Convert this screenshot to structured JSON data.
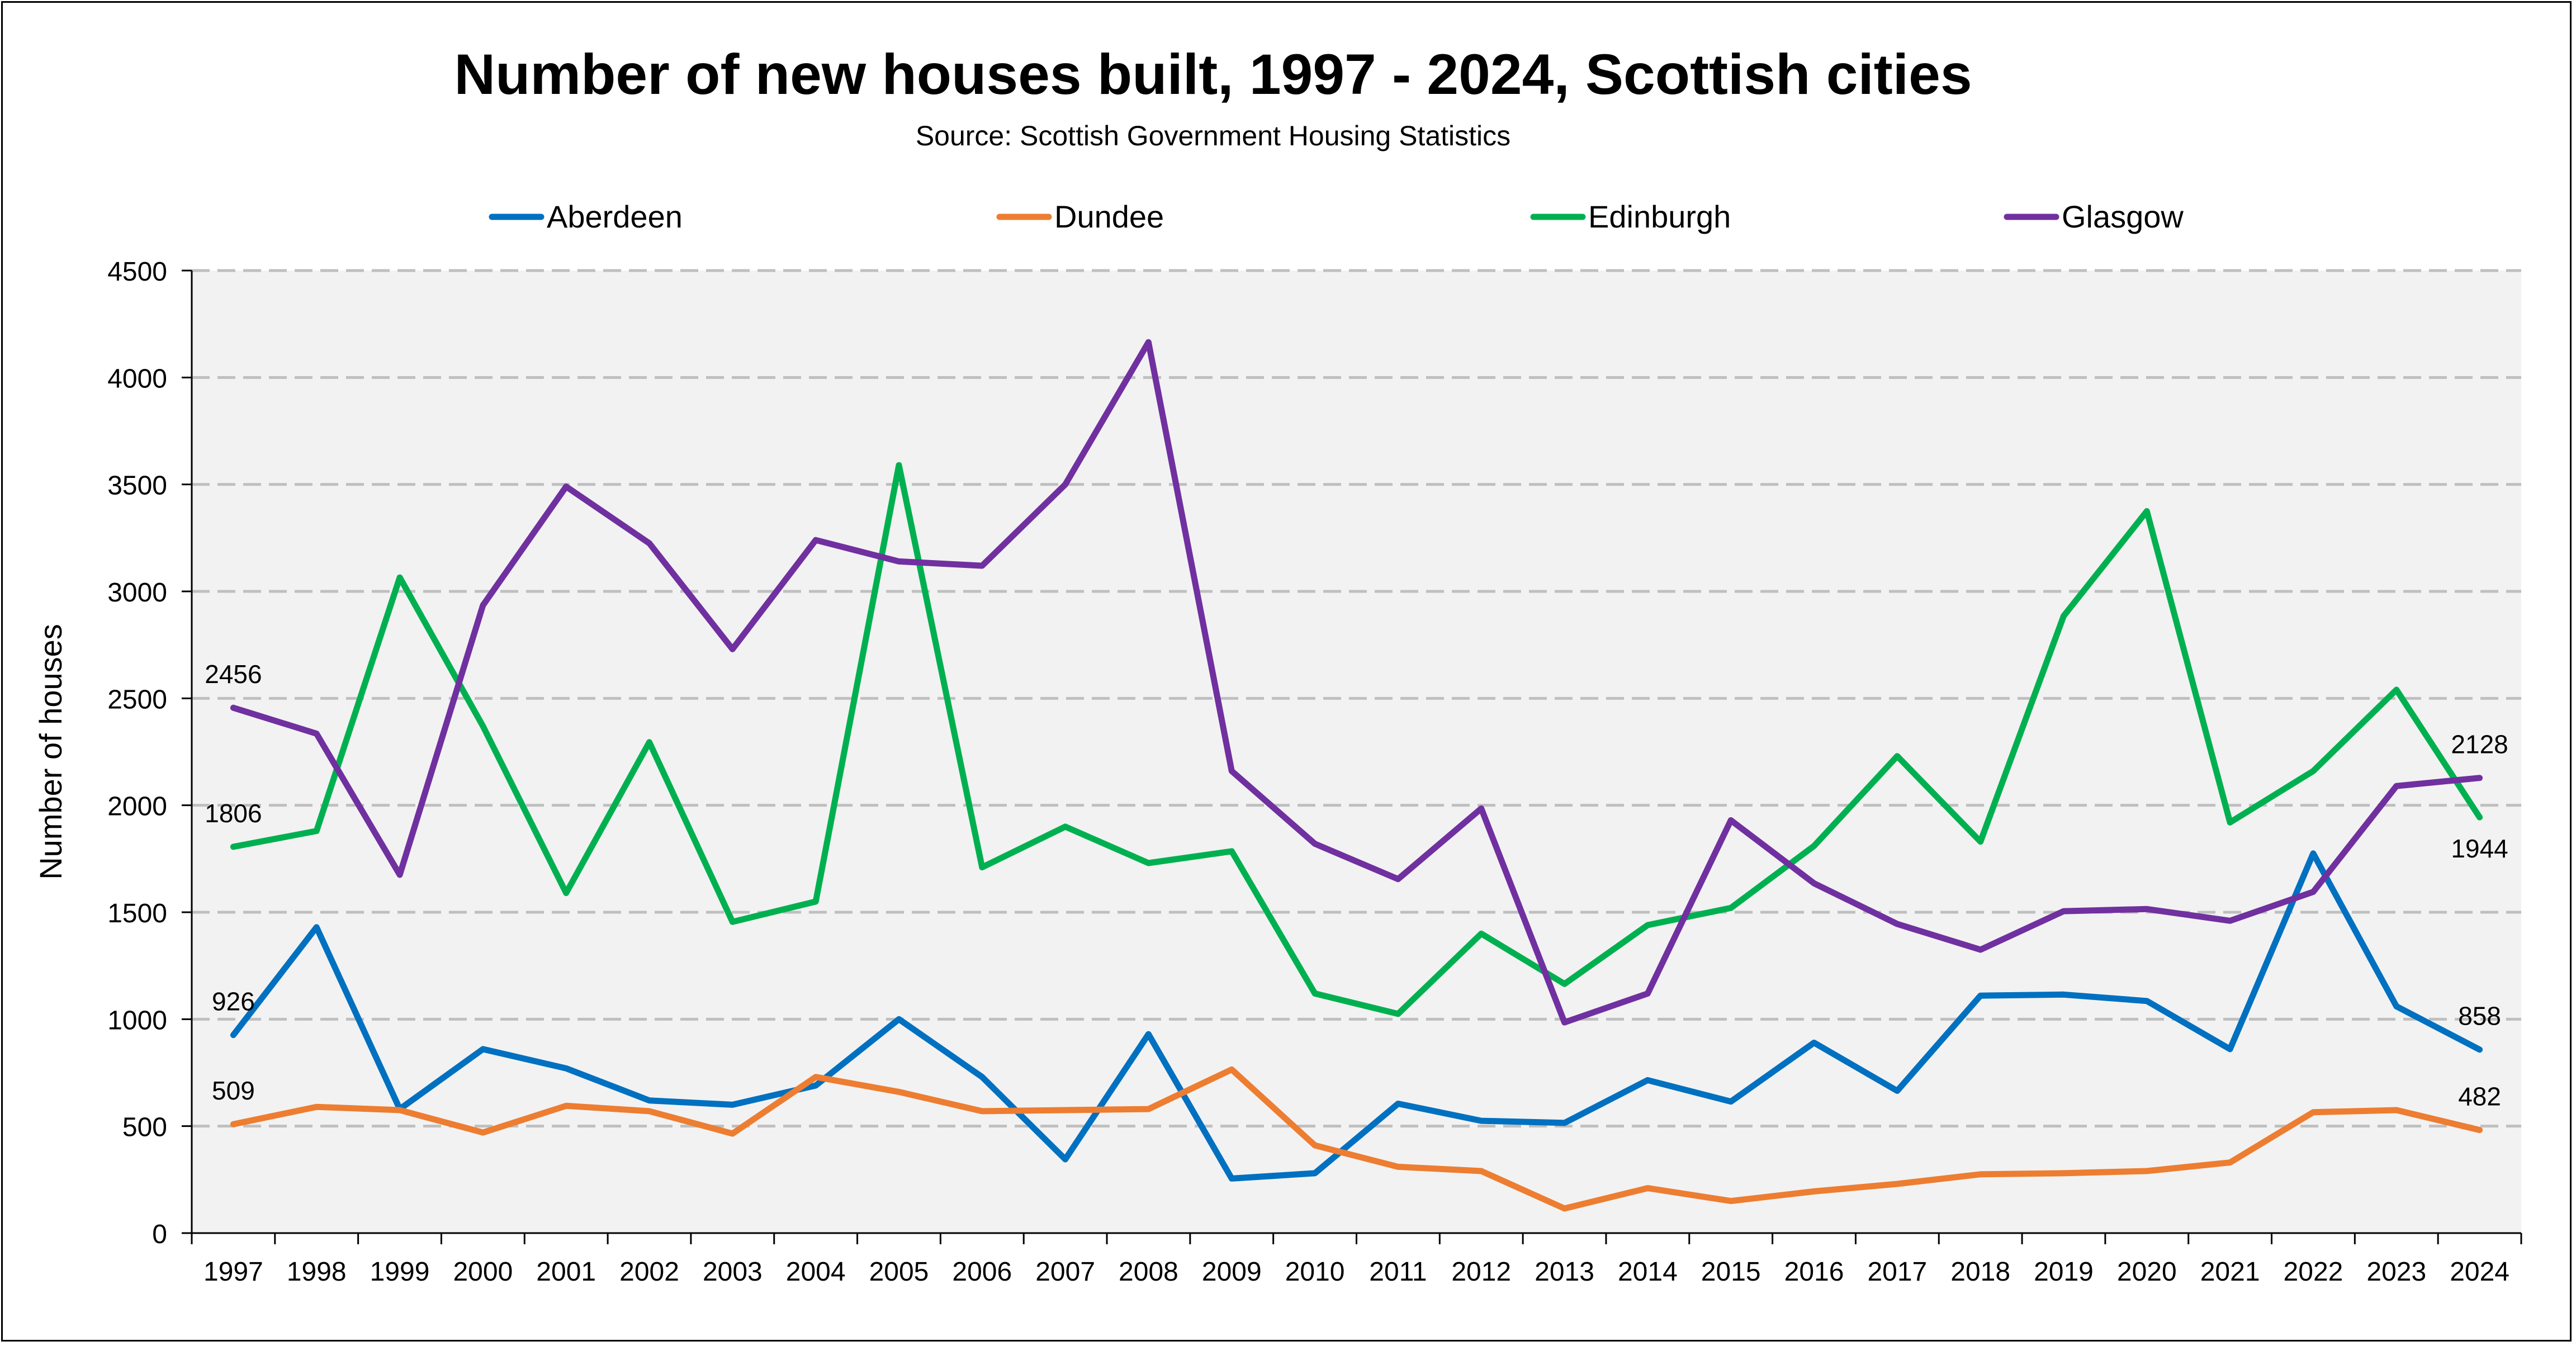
{
  "chart_data": {
    "type": "line",
    "title": "Number of new houses built, 1997 - 2024, Scottish cities",
    "subtitle": "Source: Scottish Government Housing Statistics",
    "xlabel": "",
    "ylabel": "Number of houses",
    "ylim": [
      0,
      4500
    ],
    "yticks": [
      0,
      500,
      1000,
      1500,
      2000,
      2500,
      3000,
      3500,
      4000,
      4500
    ],
    "grid": "horizontal dashed",
    "legend": "top",
    "categories": [
      "1997",
      "1998",
      "1999",
      "2000",
      "2001",
      "2002",
      "2003",
      "2004",
      "2005",
      "2006",
      "2007",
      "2008",
      "2009",
      "2010",
      "2011",
      "2012",
      "2013",
      "2014",
      "2015",
      "2016",
      "2017",
      "2018",
      "2019",
      "2020",
      "2021",
      "2022",
      "2023",
      "2024"
    ],
    "series": [
      {
        "name": "Aberdeen",
        "color": "#0070C0",
        "values": [
          926,
          1430,
          580,
          860,
          770,
          620,
          600,
          690,
          1000,
          730,
          345,
          930,
          255,
          280,
          605,
          525,
          515,
          715,
          615,
          890,
          665,
          1110,
          1115,
          1085,
          860,
          1775,
          1060,
          858
        ],
        "labels": [
          {
            "index": 0,
            "text": "926",
            "pos": "above"
          },
          {
            "index": 27,
            "text": "858",
            "pos": "above"
          }
        ]
      },
      {
        "name": "Dundee",
        "color": "#ED7D31",
        "values": [
          509,
          590,
          575,
          470,
          595,
          570,
          465,
          730,
          660,
          570,
          575,
          580,
          765,
          410,
          310,
          290,
          115,
          210,
          150,
          195,
          230,
          275,
          280,
          290,
          330,
          565,
          575,
          482
        ],
        "labels": [
          {
            "index": 0,
            "text": "509",
            "pos": "above"
          },
          {
            "index": 27,
            "text": "482",
            "pos": "above"
          }
        ]
      },
      {
        "name": "Edinburgh",
        "color": "#00B050",
        "values": [
          1806,
          1880,
          3065,
          2370,
          1590,
          2295,
          1455,
          1550,
          3590,
          1710,
          1900,
          1730,
          1785,
          1120,
          1025,
          1400,
          1165,
          1440,
          1520,
          1810,
          2230,
          1830,
          2885,
          3375,
          1920,
          2160,
          2540,
          1944
        ],
        "labels": [
          {
            "index": 0,
            "text": "1806",
            "pos": "above"
          },
          {
            "index": 27,
            "text": "1944",
            "pos": "below"
          }
        ]
      },
      {
        "name": "Glasgow",
        "color": "#7030A0",
        "values": [
          2456,
          2335,
          1675,
          2935,
          3490,
          3225,
          2730,
          3240,
          3140,
          3120,
          3500,
          4165,
          2160,
          1820,
          1655,
          1985,
          985,
          1120,
          1930,
          1635,
          1445,
          1325,
          1505,
          1515,
          1460,
          1595,
          2090,
          2128
        ],
        "labels": [
          {
            "index": 0,
            "text": "2456",
            "pos": "above"
          },
          {
            "index": 27,
            "text": "2128",
            "pos": "above"
          }
        ]
      }
    ]
  }
}
